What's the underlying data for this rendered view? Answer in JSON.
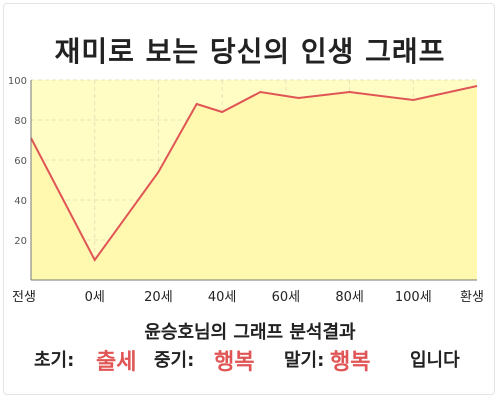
{
  "title": "재미로 보는 당신의 인생 그래프",
  "chart_data": {
    "type": "area",
    "title": "재미로 보는 당신의 인생 그래프",
    "xlabel": "",
    "ylabel": "",
    "x_ticks": [
      "전생",
      "0세",
      "20세",
      "40세",
      "60세",
      "80세",
      "100세",
      "환생"
    ],
    "y_ticks": [
      20,
      40,
      60,
      80,
      100
    ],
    "ylim": [
      0,
      100
    ],
    "grid": true,
    "line_color": "#e05555",
    "fill_color": "#fffdc4",
    "series": [
      {
        "x": [
          0,
          1,
          2,
          2.6,
          3,
          3.6,
          4.2,
          5,
          6,
          7
        ],
        "values": [
          71,
          10,
          54,
          88,
          84,
          94,
          91,
          94,
          90,
          97
        ]
      }
    ]
  },
  "summary": {
    "title": "윤승호님의 그래프 분석결과",
    "early_label": "초기:",
    "early_value": "출세",
    "middle_label": "중기:",
    "middle_value": "행복",
    "late_label": "말기:",
    "late_value": "행복",
    "ending": "입니다"
  }
}
